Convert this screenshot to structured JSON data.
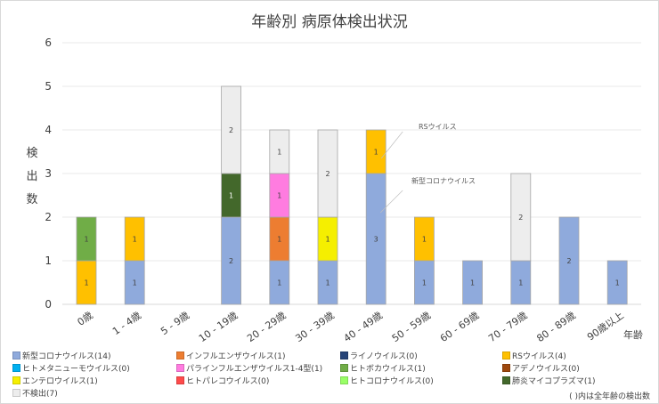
{
  "chart_data": {
    "type": "bar",
    "stacked": true,
    "title": "年齢別 病原体検出状況",
    "ylabel": "検出数",
    "xlabel": "年齢",
    "ylim": [
      0,
      6
    ],
    "yticks": [
      "0",
      "1",
      "2",
      "3",
      "4",
      "5",
      "6"
    ],
    "grid": true,
    "legend_position": "bottom",
    "categories": [
      "0歳",
      "1 - 4歳",
      "5 - 9歳",
      "10 - 19歳",
      "20 - 29歳",
      "30 - 39歳",
      "40 - 49歳",
      "50 - 59歳",
      "60 - 69歳",
      "70 - 79歳",
      "80 - 89歳",
      "90歳以上"
    ],
    "series": [
      {
        "name": "新型コロナウイルス(14)",
        "color": "#8faadc",
        "values": [
          0,
          1,
          0,
          2,
          1,
          1,
          3,
          1,
          1,
          1,
          2,
          1
        ]
      },
      {
        "name": "インフルエンザウイルス(1)",
        "color": "#ed7d31",
        "values": [
          0,
          0,
          0,
          0,
          1,
          0,
          0,
          0,
          0,
          0,
          0,
          0
        ]
      },
      {
        "name": "ライノウイルス(0)",
        "color": "#264478",
        "values": [
          0,
          0,
          0,
          0,
          0,
          0,
          0,
          0,
          0,
          0,
          0,
          0
        ]
      },
      {
        "name": "RSウイルス(4)",
        "color": "#ffc000",
        "values": [
          1,
          1,
          0,
          0,
          0,
          0,
          1,
          1,
          0,
          0,
          0,
          0
        ]
      },
      {
        "name": "ヒトメタニューモウイルス(0)",
        "color": "#00b0f0",
        "values": [
          0,
          0,
          0,
          0,
          0,
          0,
          0,
          0,
          0,
          0,
          0,
          0
        ]
      },
      {
        "name": "パラインフルエンザウイルス1-4型(1)",
        "color": "#ff7ce0",
        "values": [
          0,
          0,
          0,
          0,
          1,
          0,
          0,
          0,
          0,
          0,
          0,
          0
        ]
      },
      {
        "name": "ヒトボカウイルス(1)",
        "color": "#70ad47",
        "values": [
          1,
          0,
          0,
          0,
          0,
          0,
          0,
          0,
          0,
          0,
          0,
          0
        ]
      },
      {
        "name": "アデノウイルス(0)",
        "color": "#9e480e",
        "values": [
          0,
          0,
          0,
          0,
          0,
          0,
          0,
          0,
          0,
          0,
          0,
          0
        ]
      },
      {
        "name": "エンテロウイルス(1)",
        "color": "#f5ef00",
        "values": [
          0,
          0,
          0,
          0,
          0,
          1,
          0,
          0,
          0,
          0,
          0,
          0
        ]
      },
      {
        "name": "ヒトパレコウイルス(0)",
        "color": "#ff4b4b",
        "values": [
          0,
          0,
          0,
          0,
          0,
          0,
          0,
          0,
          0,
          0,
          0,
          0
        ]
      },
      {
        "name": "ヒトコロナウイルス(0)",
        "color": "#99ff66",
        "values": [
          0,
          0,
          0,
          0,
          0,
          0,
          0,
          0,
          0,
          0,
          0,
          0
        ]
      },
      {
        "name": "肺炎マイコプラズマ(1)",
        "color": "#43682b",
        "values": [
          0,
          0,
          0,
          1,
          0,
          0,
          0,
          0,
          0,
          0,
          0,
          0
        ]
      },
      {
        "name": "不検出(7)",
        "color": "#ededed",
        "values": [
          0,
          0,
          0,
          2,
          1,
          2,
          0,
          0,
          0,
          2,
          0,
          0
        ]
      }
    ],
    "annotations": [
      {
        "text": "RSウイルス",
        "category": "40 - 49歳",
        "series": "RSウイルス(4)"
      },
      {
        "text": "新型コロナウイルス",
        "category": "40 - 49歳",
        "series": "新型コロナウイルス(14)"
      }
    ],
    "note": "( )内は全年齢の検出数"
  }
}
